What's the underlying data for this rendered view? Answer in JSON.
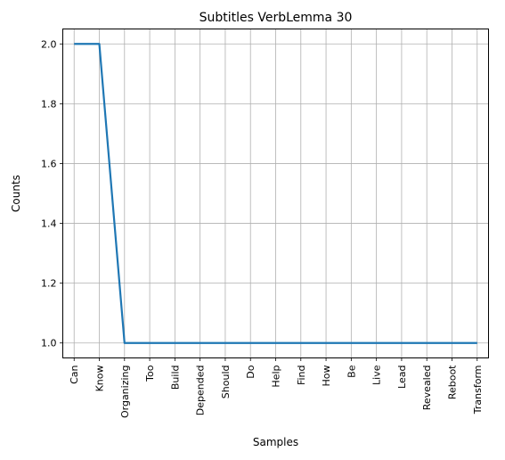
{
  "chart_data": {
    "type": "line",
    "title": "Subtitles VerbLemma 30",
    "xlabel": "Samples",
    "ylabel": "Counts",
    "categories": [
      "Can",
      "Know",
      "Organizing",
      "Too",
      "Build",
      "Depended",
      "Should",
      "Do",
      "Help",
      "Find",
      "How",
      "Be",
      "Live",
      "Lead",
      "Revealed",
      "Reboot",
      "Transform"
    ],
    "values": [
      2,
      2,
      1,
      1,
      1,
      1,
      1,
      1,
      1,
      1,
      1,
      1,
      1,
      1,
      1,
      1,
      1
    ],
    "yticks": [
      "1.0",
      "1.2",
      "1.4",
      "1.6",
      "1.8",
      "2.0"
    ],
    "ylim": [
      0.95,
      2.05
    ],
    "grid": true,
    "colors": {
      "line": "#1f77b4",
      "grid": "#b0b0b0"
    }
  }
}
